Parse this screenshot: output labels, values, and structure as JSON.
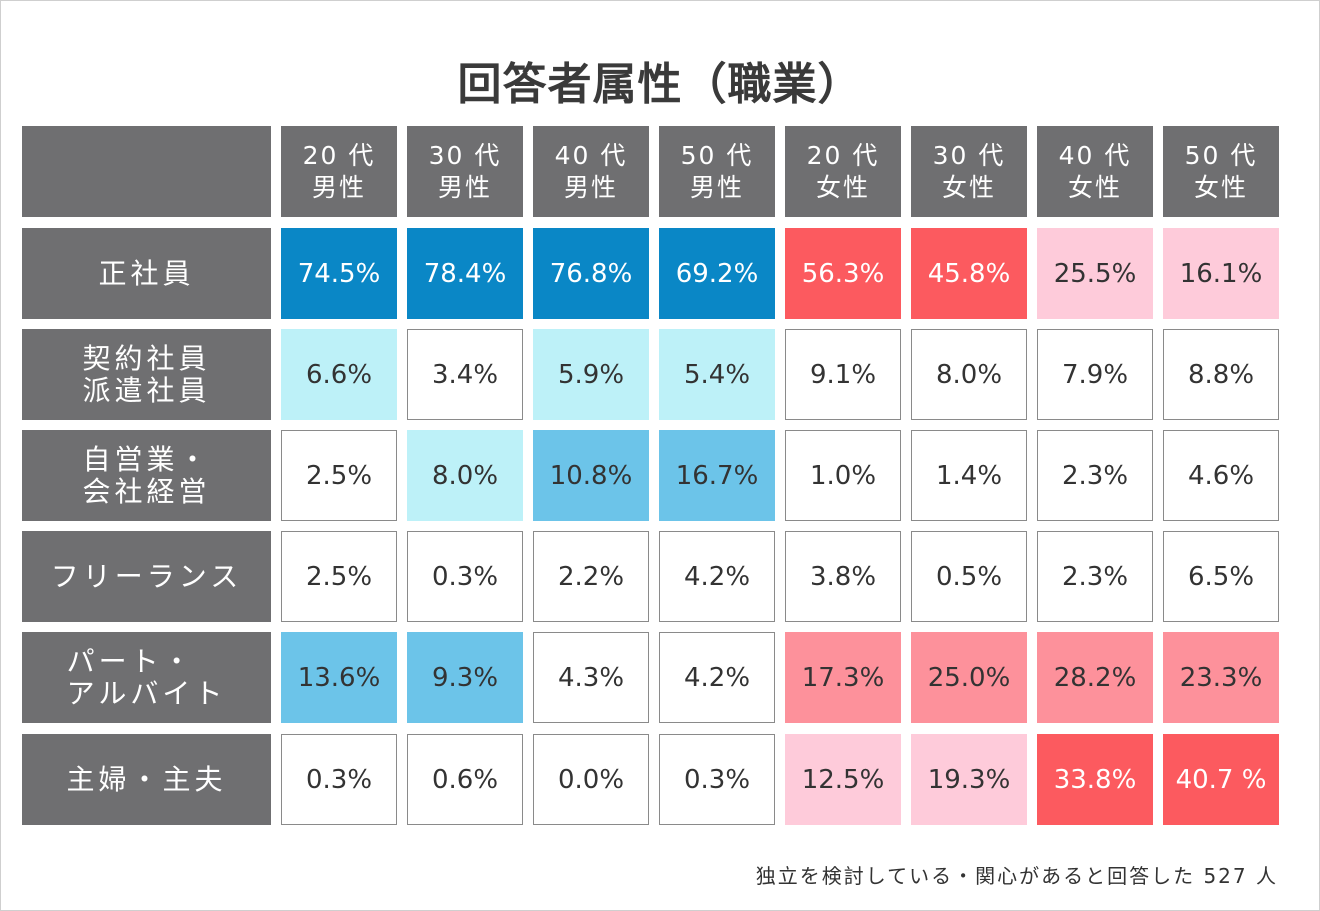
{
  "title": "回答者属性（職業）",
  "footnote": "独立を検討している・関心があると回答した 527 人",
  "chart_data": {
    "type": "table",
    "title": "回答者属性（職業）",
    "columns": [
      [
        "20 代",
        "男性"
      ],
      [
        "30 代",
        "男性"
      ],
      [
        "40 代",
        "男性"
      ],
      [
        "50 代",
        "男性"
      ],
      [
        "20 代",
        "女性"
      ],
      [
        "30 代",
        "女性"
      ],
      [
        "40 代",
        "女性"
      ],
      [
        "50 代",
        "女性"
      ]
    ],
    "rows": [
      {
        "label": [
          "正社員"
        ],
        "values": [
          "74.5%",
          "78.4%",
          "76.8%",
          "69.2%",
          "56.3%",
          "45.8%",
          "25.5%",
          "16.1%"
        ],
        "shades": [
          "dark-blue",
          "dark-blue",
          "dark-blue",
          "dark-blue",
          "dark-red",
          "dark-red",
          "light-pink",
          "light-pink"
        ]
      },
      {
        "label": [
          "契約社員",
          "派遣社員"
        ],
        "values": [
          "6.6%",
          "3.4%",
          "5.9%",
          "5.4%",
          "9.1%",
          "8.0%",
          "7.9%",
          "8.8%"
        ],
        "shades": [
          "light-blue",
          "none",
          "light-blue",
          "light-blue",
          "none",
          "none",
          "none",
          "none"
        ]
      },
      {
        "label": [
          "自営業・",
          "会社経営"
        ],
        "values": [
          "2.5%",
          "8.0%",
          "10.8%",
          "16.7%",
          "1.0%",
          "1.4%",
          "2.3%",
          "4.6%"
        ],
        "shades": [
          "none",
          "light-blue",
          "mid-blue",
          "mid-blue",
          "none",
          "none",
          "none",
          "none"
        ]
      },
      {
        "label": [
          "フリーランス"
        ],
        "values": [
          "2.5%",
          "0.3%",
          "2.2%",
          "4.2%",
          "3.8%",
          "0.5%",
          "2.3%",
          "6.5%"
        ],
        "shades": [
          "none",
          "none",
          "none",
          "none",
          "none",
          "none",
          "none",
          "none"
        ]
      },
      {
        "label": [
          "パート・",
          "アルバイト"
        ],
        "values": [
          "13.6%",
          "9.3%",
          "4.3%",
          "4.2%",
          "17.3%",
          "25.0%",
          "28.2%",
          "23.3%"
        ],
        "shades": [
          "mid-blue",
          "mid-blue",
          "none",
          "none",
          "mid-red",
          "mid-red",
          "mid-red",
          "mid-red"
        ]
      },
      {
        "label": [
          "主婦・主夫"
        ],
        "values": [
          "0.3%",
          "0.6%",
          "0.0%",
          "0.3%",
          "12.5%",
          "19.3%",
          "33.8%",
          "40.7 %"
        ],
        "shades": [
          "none",
          "none",
          "none",
          "none",
          "light-pink",
          "light-pink",
          "dark-red",
          "dark-red"
        ]
      }
    ],
    "colors": {
      "header": "#6f6f71",
      "dark-blue": "#0a87c6",
      "mid-blue": "#6cc4e9",
      "light-blue": "#bdf1f8",
      "dark-red": "#fc5a5f",
      "mid-red": "#fd919b",
      "light-pink": "#fecbda"
    }
  }
}
